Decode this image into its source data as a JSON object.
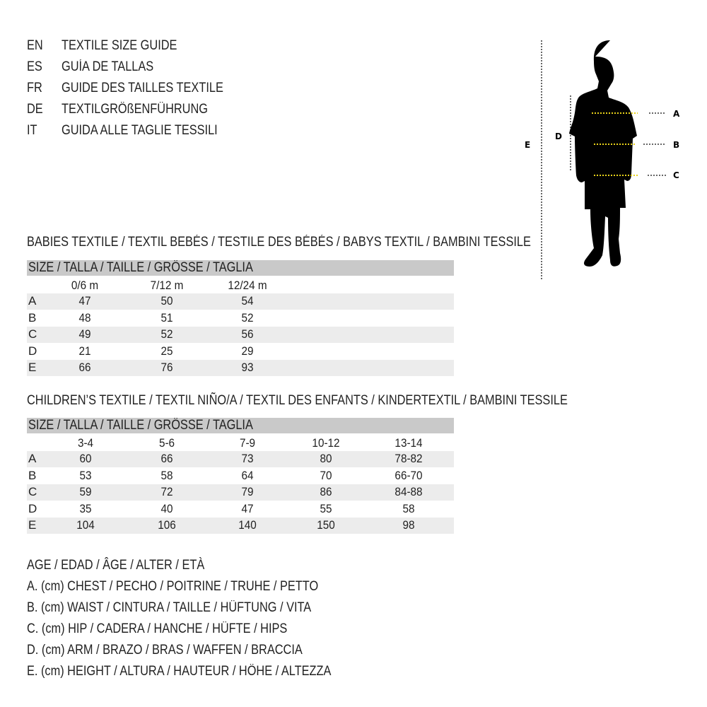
{
  "titles": [
    {
      "code": "EN",
      "text": "TEXTILE SIZE GUIDE"
    },
    {
      "code": "ES",
      "text": "GUÍA DE TALLAS"
    },
    {
      "code": "FR",
      "text": "GUIDE DES TAILLES TEXTILE"
    },
    {
      "code": "DE",
      "text": "TEXTILGRÖßENFÜHRUNG"
    },
    {
      "code": "IT",
      "text": "GUIDA ALLE TAGLIE TESSILI"
    }
  ],
  "figure": {
    "labels": {
      "a": "A",
      "b": "B",
      "c": "C",
      "d": "D",
      "e": "E"
    },
    "measure_color": "#e8d21a"
  },
  "babies": {
    "heading": "BABIES TEXTILE / TEXTIL BEBÉS / TESTILE DES BÉBÉS / BABYS TEXTIL / BAMBINI TESSILE",
    "size_label": "SIZE / TALLA / TAILLE / GRÖSSE / TAGLIA",
    "columns": [
      "0/6 m",
      "7/12 m",
      "12/24 m"
    ],
    "rows": [
      {
        "label": "A",
        "values": [
          "47",
          "50",
          "54"
        ]
      },
      {
        "label": "B",
        "values": [
          "48",
          "51",
          "52"
        ]
      },
      {
        "label": "C",
        "values": [
          "49",
          "52",
          "56"
        ]
      },
      {
        "label": "D",
        "values": [
          "21",
          "25",
          "29"
        ]
      },
      {
        "label": "E",
        "values": [
          "66",
          "76",
          "93"
        ]
      }
    ]
  },
  "children": {
    "heading": "CHILDREN’S TEXTILE / TEXTIL NIÑO/A / TEXTIL DES ENFANTS / KINDERTEXTIL / BAMBINI TESSILE",
    "size_label": "SIZE / TALLA / TAILLE / GRÖSSE / TAGLIA",
    "columns": [
      "3-4",
      "5-6",
      "7-9",
      "10-12",
      "13-14"
    ],
    "rows": [
      {
        "label": "A",
        "values": [
          "60",
          "66",
          "73",
          "80",
          "78-82"
        ]
      },
      {
        "label": "B",
        "values": [
          "53",
          "58",
          "64",
          "70",
          "66-70"
        ]
      },
      {
        "label": "C",
        "values": [
          "59",
          "72",
          "79",
          "86",
          "84-88"
        ]
      },
      {
        "label": "D",
        "values": [
          "35",
          "40",
          "47",
          "55",
          "58"
        ]
      },
      {
        "label": "E",
        "values": [
          "104",
          "106",
          "140",
          "150",
          "98"
        ]
      }
    ]
  },
  "legend": [
    "AGE / EDAD / ÂGE / ALTER / ETÀ",
    "A. (cm) CHEST / PECHO / POITRINE / TRUHE / PETTO",
    "B. (cm) WAIST / CINTURA / TAILLE / HÜFTUNG / VITA",
    "C. (cm) HIP / CADERA / HANCHE / HÜFTE / HIPS",
    "D. (cm) ARM / BRAZO / BRAS / WAFFEN / BRACCIA",
    "E. (cm) HEIGHT / ALTURA / HAUTEUR / HÖHE / ALTEZZA"
  ]
}
